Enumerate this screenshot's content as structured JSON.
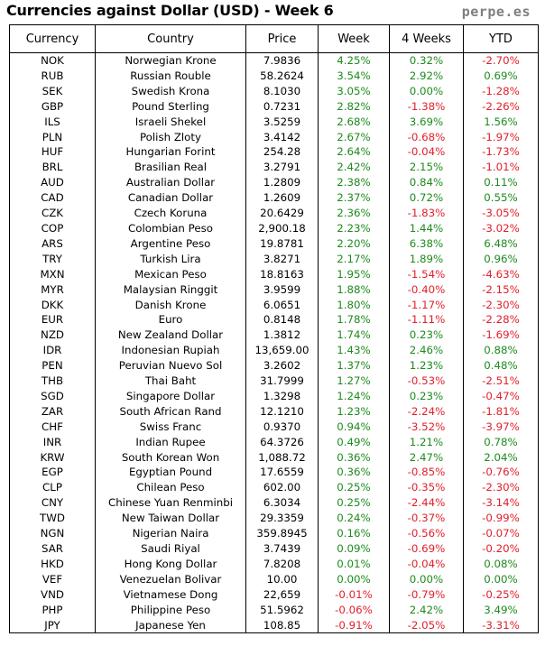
{
  "header": {
    "title": "Currencies against Dollar (USD) - Week 6",
    "brand": "perpe.es"
  },
  "colors": {
    "positive": "#1e8a1e",
    "negative": "#e0202a",
    "text": "#000000",
    "brand": "#7f7f7f"
  },
  "chart_data": {
    "type": "table",
    "title": "Currencies against Dollar (USD) - Week 6",
    "columns": [
      "Currency",
      "Country",
      "Price",
      "Week",
      "4 Weeks",
      "YTD"
    ],
    "rows": [
      {
        "code": "NOK",
        "country": "Norwegian Krone",
        "price": "7.9836",
        "week": "4.25%",
        "weeks4": "0.32%",
        "ytd": "-2.70%"
      },
      {
        "code": "RUB",
        "country": "Russian Rouble",
        "price": "58.2624",
        "week": "3.54%",
        "weeks4": "2.92%",
        "ytd": "0.69%"
      },
      {
        "code": "SEK",
        "country": "Swedish Krona",
        "price": "8.1030",
        "week": "3.05%",
        "weeks4": "0.00%",
        "ytd": "-1.28%"
      },
      {
        "code": "GBP",
        "country": "Pound Sterling",
        "price": "0.7231",
        "week": "2.82%",
        "weeks4": "-1.38%",
        "ytd": "-2.26%"
      },
      {
        "code": "ILS",
        "country": "Israeli Shekel",
        "price": "3.5259",
        "week": "2.68%",
        "weeks4": "3.69%",
        "ytd": "1.56%"
      },
      {
        "code": "PLN",
        "country": "Polish Zloty",
        "price": "3.4142",
        "week": "2.67%",
        "weeks4": "-0.68%",
        "ytd": "-1.97%"
      },
      {
        "code": "HUF",
        "country": "Hungarian Forint",
        "price": "254.28",
        "week": "2.64%",
        "weeks4": "-0.04%",
        "ytd": "-1.73%"
      },
      {
        "code": "BRL",
        "country": "Brasilian Real",
        "price": "3.2791",
        "week": "2.42%",
        "weeks4": "2.15%",
        "ytd": "-1.01%"
      },
      {
        "code": "AUD",
        "country": "Australian Dollar",
        "price": "1.2809",
        "week": "2.38%",
        "weeks4": "0.84%",
        "ytd": "0.11%"
      },
      {
        "code": "CAD",
        "country": "Canadian Dollar",
        "price": "1.2609",
        "week": "2.37%",
        "weeks4": "0.72%",
        "ytd": "0.55%"
      },
      {
        "code": "CZK",
        "country": "Czech Koruna",
        "price": "20.6429",
        "week": "2.36%",
        "weeks4": "-1.83%",
        "ytd": "-3.05%"
      },
      {
        "code": "COP",
        "country": "Colombian Peso",
        "price": "2,900.18",
        "week": "2.23%",
        "weeks4": "1.44%",
        "ytd": "-3.02%"
      },
      {
        "code": "ARS",
        "country": "Argentine Peso",
        "price": "19.8781",
        "week": "2.20%",
        "weeks4": "6.38%",
        "ytd": "6.48%"
      },
      {
        "code": "TRY",
        "country": "Turkish Lira",
        "price": "3.8271",
        "week": "2.17%",
        "weeks4": "1.89%",
        "ytd": "0.96%"
      },
      {
        "code": "MXN",
        "country": "Mexican Peso",
        "price": "18.8163",
        "week": "1.95%",
        "weeks4": "-1.54%",
        "ytd": "-4.63%"
      },
      {
        "code": "MYR",
        "country": "Malaysian Ringgit",
        "price": "3.9599",
        "week": "1.88%",
        "weeks4": "-0.40%",
        "ytd": "-2.15%"
      },
      {
        "code": "DKK",
        "country": "Danish Krone",
        "price": "6.0651",
        "week": "1.80%",
        "weeks4": "-1.17%",
        "ytd": "-2.30%"
      },
      {
        "code": "EUR",
        "country": "Euro",
        "price": "0.8148",
        "week": "1.78%",
        "weeks4": "-1.11%",
        "ytd": "-2.28%"
      },
      {
        "code": "NZD",
        "country": "New Zealand Dollar",
        "price": "1.3812",
        "week": "1.74%",
        "weeks4": "0.23%",
        "ytd": "-1.69%"
      },
      {
        "code": "IDR",
        "country": "Indonesian Rupiah",
        "price": "13,659.00",
        "week": "1.43%",
        "weeks4": "2.46%",
        "ytd": "0.88%"
      },
      {
        "code": "PEN",
        "country": "Peruvian Nuevo Sol",
        "price": "3.2602",
        "week": "1.37%",
        "weeks4": "1.23%",
        "ytd": "0.48%"
      },
      {
        "code": "THB",
        "country": "Thai Baht",
        "price": "31.7999",
        "week": "1.27%",
        "weeks4": "-0.53%",
        "ytd": "-2.51%"
      },
      {
        "code": "SGD",
        "country": "Singapore Dollar",
        "price": "1.3298",
        "week": "1.24%",
        "weeks4": "0.23%",
        "ytd": "-0.47%"
      },
      {
        "code": "ZAR",
        "country": "South African Rand",
        "price": "12.1210",
        "week": "1.23%",
        "weeks4": "-2.24%",
        "ytd": "-1.81%"
      },
      {
        "code": "CHF",
        "country": "Swiss Franc",
        "price": "0.9370",
        "week": "0.94%",
        "weeks4": "-3.52%",
        "ytd": "-3.97%"
      },
      {
        "code": "INR",
        "country": "Indian Rupee",
        "price": "64.3726",
        "week": "0.49%",
        "weeks4": "1.21%",
        "ytd": "0.78%"
      },
      {
        "code": "KRW",
        "country": "South Korean Won",
        "price": "1,088.72",
        "week": "0.36%",
        "weeks4": "2.47%",
        "ytd": "2.04%"
      },
      {
        "code": "EGP",
        "country": "Egyptian Pound",
        "price": "17.6559",
        "week": "0.36%",
        "weeks4": "-0.85%",
        "ytd": "-0.76%"
      },
      {
        "code": "CLP",
        "country": "Chilean Peso",
        "price": "602.00",
        "week": "0.25%",
        "weeks4": "-0.35%",
        "ytd": "-2.30%"
      },
      {
        "code": "CNY",
        "country": "Chinese Yuan Renminbi",
        "price": "6.3034",
        "week": "0.25%",
        "weeks4": "-2.44%",
        "ytd": "-3.14%"
      },
      {
        "code": "TWD",
        "country": "New Taiwan Dollar",
        "price": "29.3359",
        "week": "0.24%",
        "weeks4": "-0.37%",
        "ytd": "-0.99%"
      },
      {
        "code": "NGN",
        "country": "Nigerian Naira",
        "price": "359.8945",
        "week": "0.16%",
        "weeks4": "-0.56%",
        "ytd": "-0.07%"
      },
      {
        "code": "SAR",
        "country": "Saudi Riyal",
        "price": "3.7439",
        "week": "0.09%",
        "weeks4": "-0.69%",
        "ytd": "-0.20%"
      },
      {
        "code": "HKD",
        "country": "Hong Kong Dollar",
        "price": "7.8208",
        "week": "0.01%",
        "weeks4": "-0.04%",
        "ytd": "0.08%"
      },
      {
        "code": "VEF",
        "country": "Venezuelan Bolivar",
        "price": "10.00",
        "week": "0.00%",
        "weeks4": "0.00%",
        "ytd": "0.00%"
      },
      {
        "code": "VND",
        "country": "Vietnamese Dong",
        "price": "22,659",
        "week": "-0.01%",
        "weeks4": "-0.79%",
        "ytd": "-0.25%"
      },
      {
        "code": "PHP",
        "country": "Philippine Peso",
        "price": "51.5962",
        "week": "-0.06%",
        "weeks4": "2.42%",
        "ytd": "3.49%"
      },
      {
        "code": "JPY",
        "country": "Japanese Yen",
        "price": "108.85",
        "week": "-0.91%",
        "weeks4": "-2.05%",
        "ytd": "-3.31%"
      }
    ]
  }
}
